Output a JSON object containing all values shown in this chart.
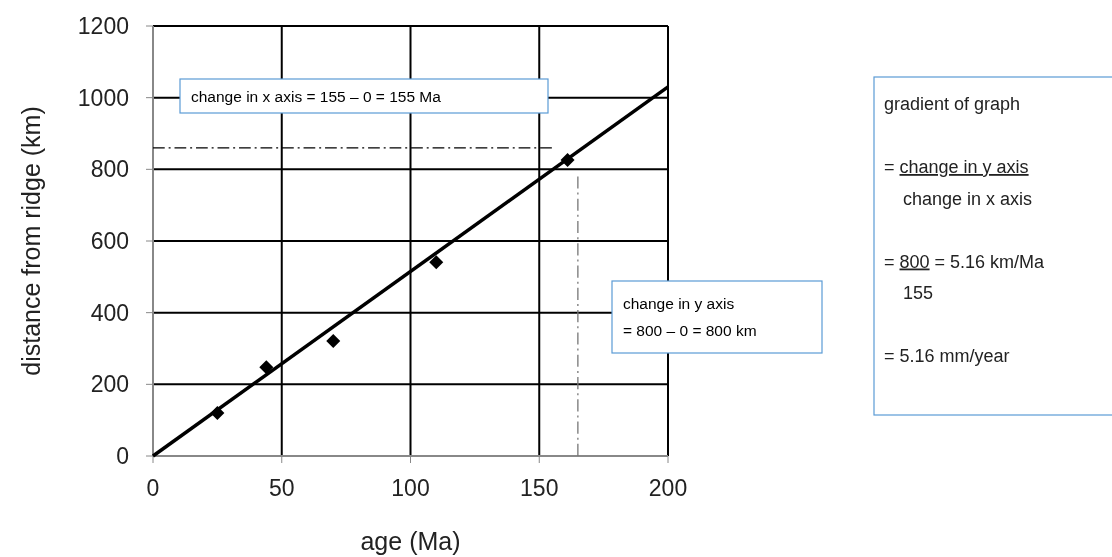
{
  "chart_data": {
    "type": "scatter",
    "xlabel": "age (Ma)",
    "ylabel": "distance from ridge (km)",
    "xlim": [
      0,
      200
    ],
    "xticks": [
      0,
      50,
      100,
      150,
      200
    ],
    "ylim": [
      0,
      1200
    ],
    "yticks": [
      0,
      200,
      400,
      600,
      800,
      1000,
      1200
    ],
    "grid": true,
    "series": [
      {
        "color": "#000000",
        "marker": "diamond",
        "x": [
          25,
          44,
          70,
          110,
          161
        ],
        "values": [
          120,
          248,
          321,
          541,
          826
        ]
      },
      {
        "type": "line",
        "color": "#000000",
        "marker": "none",
        "line_style": "solid",
        "x": [
          0,
          200
        ],
        "values": [
          0,
          1030
        ]
      },
      {
        "type": "line",
        "color": "#000000",
        "marker": "none",
        "line_style": "dashed",
        "x": [
          0,
          155
        ],
        "values": [
          860,
          860
        ]
      },
      {
        "type": "line",
        "color": "#777777",
        "marker": "none",
        "line_style": "dashed",
        "x": [
          165,
          165
        ],
        "values": [
          0,
          780
        ]
      }
    ],
    "annotations": [
      "change in x axis = 155 – 0 = 155 Ma",
      "change in y axis\n= 800 – 0 = 800 km",
      "gradient of graph\n\n= change in y axis\nchange in x axis\n\n= 800 = 5.16 km/Ma\n155\n\n= 5.16 mm/year"
    ]
  }
}
